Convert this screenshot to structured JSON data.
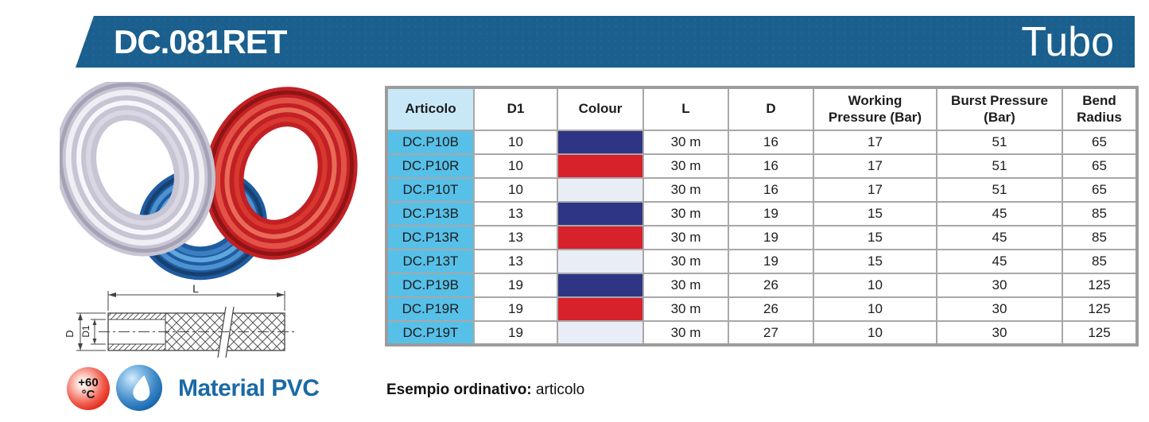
{
  "banner": {
    "code": "DC.081RET",
    "category": "Tubo"
  },
  "colors": {
    "banner": "#1a5f8e",
    "articolo_header_bg": "#c9e8f7",
    "articolo_cell_bg": "#57c0e8",
    "table_border": "#9c9c9c",
    "material_text": "#1a6aa5",
    "swatch_blue": "#2e3585",
    "swatch_red": "#d7212b",
    "swatch_transparent": "#e8edf6"
  },
  "table": {
    "columns": [
      "Articolo",
      "D1",
      "Colour",
      "L",
      "D",
      "Working Pressure (Bar)",
      "Burst Pressure (Bar)",
      "Bend Radius"
    ],
    "rows": [
      {
        "articolo": "DC.P10B",
        "d1": "10",
        "colour": {
          "name": "blu",
          "hex": "#2e3585"
        },
        "l": "30 m",
        "d": "16",
        "working_pressure": "17",
        "burst_pressure": "51",
        "bend_radius": "65"
      },
      {
        "articolo": "DC.P10R",
        "d1": "10",
        "colour": {
          "name": "rosso",
          "hex": "#d7212b"
        },
        "l": "30 m",
        "d": "16",
        "working_pressure": "17",
        "burst_pressure": "51",
        "bend_radius": "65"
      },
      {
        "articolo": "DC.P10T",
        "d1": "10",
        "colour": {
          "name": "trasparente",
          "hex": "#e8edf6"
        },
        "l": "30 m",
        "d": "16",
        "working_pressure": "17",
        "burst_pressure": "51",
        "bend_radius": "65"
      },
      {
        "articolo": "DC.P13B",
        "d1": "13",
        "colour": {
          "name": "blu",
          "hex": "#2e3585"
        },
        "l": "30 m",
        "d": "19",
        "working_pressure": "15",
        "burst_pressure": "45",
        "bend_radius": "85"
      },
      {
        "articolo": "DC.P13R",
        "d1": "13",
        "colour": {
          "name": "rosso",
          "hex": "#d7212b"
        },
        "l": "30 m",
        "d": "19",
        "working_pressure": "15",
        "burst_pressure": "45",
        "bend_radius": "85"
      },
      {
        "articolo": "DC.P13T",
        "d1": "13",
        "colour": {
          "name": "trasparente",
          "hex": "#e8edf6"
        },
        "l": "30 m",
        "d": "19",
        "working_pressure": "15",
        "burst_pressure": "45",
        "bend_radius": "85"
      },
      {
        "articolo": "DC.P19B",
        "d1": "19",
        "colour": {
          "name": "blu",
          "hex": "#2e3585"
        },
        "l": "30 m",
        "d": "26",
        "working_pressure": "10",
        "burst_pressure": "30",
        "bend_radius": "125"
      },
      {
        "articolo": "DC.P19R",
        "d1": "19",
        "colour": {
          "name": "rosso",
          "hex": "#d7212b"
        },
        "l": "30 m",
        "d": "26",
        "working_pressure": "10",
        "burst_pressure": "30",
        "bend_radius": "125"
      },
      {
        "articolo": "DC.P19T",
        "d1": "19",
        "colour": {
          "name": "trasparente",
          "hex": "#e8edf6"
        },
        "l": "30 m",
        "d": "27",
        "working_pressure": "10",
        "burst_pressure": "30",
        "bend_radius": "125"
      }
    ]
  },
  "diagram": {
    "length_label": "L",
    "outer_diameter_label": "D",
    "inner_diameter_label": "D1"
  },
  "footer": {
    "temperature_icon": {
      "line1": "+60",
      "line2": "°C"
    },
    "material_label": "Material PVC",
    "example_label": "Esempio ordinativo:",
    "example_value": "articolo"
  }
}
